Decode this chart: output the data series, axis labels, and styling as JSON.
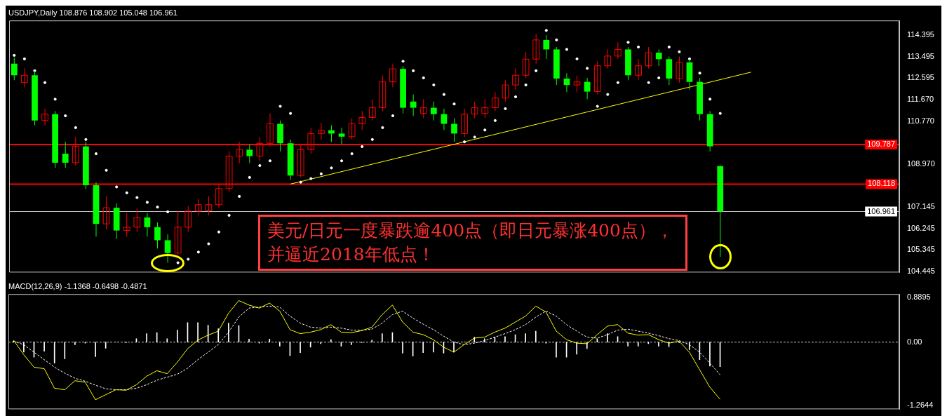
{
  "chart_data": [
    {
      "type": "candlestick",
      "title": "USDJPY,Daily 108.876 108.902 105.048 106.961",
      "categories": [
        null,
        null,
        null,
        null,
        null,
        null,
        null,
        null,
        null,
        null,
        null,
        null,
        null,
        null,
        null,
        null,
        null,
        null,
        null,
        null,
        null,
        null,
        null,
        null,
        null,
        null,
        null,
        null,
        null,
        null,
        null,
        null,
        null,
        null,
        null,
        null,
        null,
        null,
        null,
        null,
        null,
        null,
        null,
        null,
        null,
        null,
        null,
        null,
        null,
        null,
        null,
        null,
        null,
        null,
        null,
        null,
        null,
        null,
        null,
        null,
        null,
        null,
        null,
        null,
        null,
        null,
        null,
        null,
        null,
        null,
        null,
        null,
        null,
        null,
        null,
        null,
        null,
        null,
        null,
        null,
        null,
        null,
        null,
        null,
        null,
        null,
        null
      ],
      "ohlc": [
        [
          113.2,
          113.45,
          112.5,
          112.71
        ],
        [
          112.4,
          113.0,
          112.2,
          112.71
        ],
        [
          112.71,
          112.9,
          110.6,
          110.8
        ],
        [
          110.8,
          111.3,
          110.6,
          111.07
        ],
        [
          111.07,
          111.2,
          108.8,
          109.02
        ],
        [
          109.4,
          109.9,
          108.8,
          109.02
        ],
        [
          109.02,
          110.1,
          108.9,
          109.71
        ],
        [
          109.71,
          109.9,
          107.9,
          108.07
        ],
        [
          108.07,
          108.2,
          105.9,
          106.44
        ],
        [
          106.44,
          107.6,
          106.2,
          107.12
        ],
        [
          107.12,
          107.3,
          105.8,
          106.16
        ],
        [
          106.16,
          106.9,
          105.9,
          106.3
        ],
        [
          106.3,
          107.1,
          106.1,
          106.71
        ],
        [
          106.71,
          106.9,
          105.9,
          106.3
        ],
        [
          106.3,
          106.5,
          105.4,
          105.75
        ],
        [
          105.75,
          106.0,
          104.8,
          105.21
        ],
        [
          105.21,
          107.0,
          105.1,
          106.3
        ],
        [
          106.3,
          107.2,
          106.1,
          106.98
        ],
        [
          106.98,
          107.5,
          106.8,
          107.25
        ],
        [
          107.0,
          107.6,
          106.8,
          107.25
        ],
        [
          107.25,
          108.1,
          107.1,
          107.93
        ],
        [
          107.93,
          109.5,
          107.8,
          109.3
        ],
        [
          109.3,
          109.9,
          109.0,
          109.57
        ],
        [
          109.57,
          109.8,
          109.0,
          109.3
        ],
        [
          109.3,
          110.1,
          109.1,
          109.84
        ],
        [
          109.84,
          111.1,
          109.7,
          110.66
        ],
        [
          110.66,
          110.8,
          109.5,
          109.84
        ],
        [
          109.84,
          110.0,
          108.3,
          108.48
        ],
        [
          108.48,
          109.8,
          108.4,
          109.57
        ],
        [
          109.57,
          110.5,
          109.4,
          110.25
        ],
        [
          110.25,
          110.7,
          110.0,
          110.39
        ],
        [
          110.39,
          110.6,
          109.9,
          110.25
        ],
        [
          110.25,
          110.5,
          109.8,
          110.12
        ],
        [
          110.12,
          110.9,
          110.0,
          110.66
        ],
        [
          110.66,
          111.2,
          110.4,
          110.93
        ],
        [
          110.93,
          111.7,
          110.8,
          111.34
        ],
        [
          111.34,
          112.7,
          111.2,
          112.43
        ],
        [
          112.43,
          113.2,
          112.2,
          112.98
        ],
        [
          112.98,
          113.1,
          111.1,
          111.34
        ],
        [
          111.6,
          111.9,
          111.0,
          111.34
        ],
        [
          111.1,
          111.7,
          110.9,
          111.34
        ],
        [
          111.34,
          111.6,
          110.8,
          111.07
        ],
        [
          111.07,
          111.3,
          110.4,
          110.66
        ],
        [
          110.66,
          110.9,
          109.9,
          110.25
        ],
        [
          110.25,
          111.3,
          110.1,
          111.07
        ],
        [
          111.07,
          111.6,
          110.9,
          111.34
        ],
        [
          111.1,
          111.7,
          110.9,
          111.34
        ],
        [
          111.34,
          112.0,
          111.2,
          111.75
        ],
        [
          111.75,
          112.5,
          111.6,
          112.3
        ],
        [
          112.3,
          113.0,
          112.1,
          112.71
        ],
        [
          112.71,
          113.7,
          112.6,
          113.39
        ],
        [
          113.39,
          114.45,
          113.2,
          114.2
        ],
        [
          114.2,
          114.4,
          113.4,
          113.8
        ],
        [
          113.8,
          113.9,
          112.3,
          112.57
        ],
        [
          112.57,
          112.8,
          112.0,
          112.3
        ],
        [
          112.3,
          112.7,
          112.0,
          112.43
        ],
        [
          112.43,
          112.6,
          111.7,
          112.02
        ],
        [
          112.02,
          113.3,
          111.9,
          113.11
        ],
        [
          113.11,
          113.8,
          113.0,
          113.52
        ],
        [
          113.52,
          114.1,
          113.4,
          113.8
        ],
        [
          113.8,
          113.9,
          112.5,
          112.71
        ],
        [
          112.71,
          113.4,
          112.5,
          113.11
        ],
        [
          113.11,
          113.9,
          113.0,
          113.66
        ],
        [
          113.66,
          113.8,
          113.1,
          113.39
        ],
        [
          113.39,
          113.5,
          112.3,
          112.57
        ],
        [
          112.57,
          113.5,
          112.4,
          113.25
        ],
        [
          113.25,
          113.4,
          112.1,
          112.43
        ],
        [
          112.43,
          112.6,
          110.8,
          111.07
        ],
        [
          111.07,
          111.2,
          109.5,
          109.71
        ],
        [
          108.876,
          108.902,
          105.048,
          106.961
        ],
        null,
        null,
        null,
        null,
        null,
        null,
        null,
        null,
        null,
        null,
        null,
        null,
        null,
        null,
        null,
        null,
        null
      ],
      "colors": [
        "#00ff00",
        "#ff0000",
        "#00ff00",
        "#ff0000",
        "#00ff00",
        "#00ff00",
        "#ff0000",
        "#00ff00",
        "#00ff00",
        "#ff0000",
        "#00ff00",
        "#ff0000",
        "#ff0000",
        "#00ff00",
        "#00ff00",
        "#00ff00",
        "#ff0000",
        "#ff0000",
        "#ff0000",
        "#ff0000",
        "#ff0000",
        "#ff0000",
        "#ff0000",
        "#00ff00",
        "#ff0000",
        "#ff0000",
        "#00ff00",
        "#00ff00",
        "#ff0000",
        "#ff0000",
        "#ff0000",
        "#00ff00",
        "#00ff00",
        "#ff0000",
        "#ff0000",
        "#ff0000",
        "#ff0000",
        "#ff0000",
        "#00ff00",
        "#00ff00",
        "#ff0000",
        "#00ff00",
        "#00ff00",
        "#00ff00",
        "#ff0000",
        "#ff0000",
        "#ff0000",
        "#ff0000",
        "#ff0000",
        "#ff0000",
        "#ff0000",
        "#ff0000",
        "#00ff00",
        "#00ff00",
        "#00ff00",
        "#ff0000",
        "#00ff00",
        "#ff0000",
        "#ff0000",
        "#ff0000",
        "#00ff00",
        "#ff0000",
        "#ff0000",
        "#00ff00",
        "#00ff00",
        "#ff0000",
        "#00ff00",
        "#00ff00",
        "#00ff00",
        "#00ff00",
        null,
        null,
        null,
        null,
        null,
        null,
        null,
        null,
        null,
        null,
        null,
        null,
        null,
        null,
        null,
        null,
        null
      ],
      "series": [
        {
          "type": "scatter",
          "color": "#ffffff",
          "marker": "circle",
          "values": [
            113.55,
            113.4,
            112.9,
            112.4,
            111.7,
            111.0,
            110.5,
            110.0,
            109.4,
            108.7,
            108.0,
            107.75,
            107.55,
            107.35,
            107.15,
            106.95,
            104.8,
            104.95,
            105.25,
            105.6,
            106.1,
            106.8,
            107.6,
            108.4,
            108.9,
            109.1,
            111.4,
            111.1,
            108.2,
            108.35,
            108.55,
            108.8,
            109.1,
            109.4,
            109.7,
            110.0,
            110.5,
            111.0,
            113.3,
            112.9,
            112.6,
            112.3,
            111.9,
            111.5,
            109.9,
            110.1,
            110.4,
            110.8,
            111.3,
            111.8,
            112.3,
            112.9,
            114.6,
            114.2,
            113.8,
            113.4,
            113.0,
            111.4,
            111.9,
            112.4,
            114.1,
            113.9,
            112.4,
            112.6,
            113.9,
            113.7,
            113.4,
            112.8,
            111.7,
            111.1,
            null,
            null,
            null,
            null,
            null,
            null,
            null,
            null,
            null,
            null,
            null,
            null,
            null,
            null,
            null,
            null,
            null
          ]
        },
        {
          "type": "line",
          "color": "#ffff00",
          "values": [
            null,
            null,
            null,
            null,
            null,
            null,
            null,
            null,
            null,
            null,
            null,
            null,
            null,
            null,
            null,
            null,
            null,
            null,
            null,
            null,
            null,
            null,
            null,
            null,
            null,
            null,
            null,
            108.12,
            null,
            null,
            null,
            null,
            null,
            null,
            null,
            null,
            null,
            null,
            null,
            null,
            null,
            null,
            null,
            null,
            null,
            null,
            null,
            null,
            null,
            null,
            null,
            null,
            null,
            null,
            null,
            null,
            null,
            null,
            null,
            null,
            null,
            null,
            null,
            null,
            null,
            null,
            null,
            null,
            null,
            null,
            null,
            null,
            112.84,
            null,
            null,
            null,
            null,
            null,
            null,
            null,
            null,
            null,
            null,
            null,
            null,
            null,
            null
          ]
        }
      ],
      "ylim": [
        104.39,
        115.02
      ],
      "yticks": [
        114.395,
        113.495,
        112.595,
        {
          "value": 111.67,
          "label": "111.670"
        },
        {
          "value": 110.77,
          "label": "110.770"
        },
        {
          "value": 108.97,
          "label": "108.970"
        },
        107.145,
        106.245,
        105.345,
        104.445
      ],
      "ref_lines": [
        {
          "axis": "y",
          "value": 109.787,
          "label": "109.787",
          "color": "#ff0000"
        },
        {
          "axis": "y",
          "value": 108.118,
          "label": "108.118",
          "color": "#ff0000"
        },
        {
          "axis": "y",
          "value": 106.961,
          "label": "106.961",
          "color": "#c0c0c0"
        }
      ],
      "annotations": [
        "美元/日元一度暴跌逾400点（即日元暴涨400点），并逼近2018年低点！"
      ],
      "tick_labels": "y"
    },
    {
      "type": "bar",
      "title": "MACD(12,26,9) -1.1368 -0.6498 -0.4871",
      "categories": [
        null,
        null,
        null,
        null,
        null,
        null,
        null,
        null,
        null,
        null,
        null,
        null,
        null,
        null,
        null,
        null,
        null,
        null,
        null,
        null,
        null,
        null,
        null,
        null,
        null,
        null,
        null,
        null,
        null,
        null,
        null,
        null,
        null,
        null,
        null,
        null,
        null,
        null,
        null,
        null,
        null,
        null,
        null,
        null,
        null,
        null,
        null,
        null,
        null,
        null,
        null,
        null,
        null,
        null,
        null,
        null,
        null,
        null,
        null,
        null,
        null,
        null,
        null,
        null,
        null,
        null,
        null,
        null,
        null,
        null,
        null,
        null,
        null,
        null,
        null,
        null,
        null,
        null,
        null,
        null,
        null,
        null,
        null,
        null,
        null,
        null,
        null
      ],
      "series": [
        {
          "type": "bar",
          "color": "#ffffff",
          "values": [
            0.02,
            -0.2,
            -0.3,
            -0.18,
            -0.42,
            -0.33,
            -0.05,
            -0.02,
            -0.29,
            -0.12,
            0,
            -0.01,
            0.07,
            0.17,
            0.19,
            0.07,
            0.24,
            0.39,
            0.39,
            0.34,
            0.27,
            0.38,
            0.33,
            0.06,
            -0.02,
            0.06,
            -0.08,
            -0.27,
            -0.21,
            -0.1,
            -0.03,
            0.05,
            -0.08,
            -0.05,
            -0.01,
            0.04,
            0.17,
            0.19,
            -0.22,
            -0.28,
            -0.21,
            -0.2,
            -0.22,
            -0.2,
            0,
            0.1,
            0.07,
            0.1,
            0.11,
            0.15,
            0.17,
            0.22,
            -0.02,
            -0.3,
            -0.3,
            -0.24,
            -0.13,
            0.07,
            0.17,
            0.11,
            -0.08,
            -0.08,
            -0.03,
            -0.08,
            -0.09,
            -0.01,
            -0.15,
            -0.35,
            -0.48,
            -0.49,
            null,
            null,
            null,
            null,
            null,
            null,
            null,
            null,
            null,
            null,
            null,
            null,
            null,
            null,
            null,
            null,
            null
          ]
        },
        {
          "type": "line",
          "color": "#ffff00",
          "values": [
            0.04,
            -0.25,
            -0.5,
            -0.53,
            -0.92,
            -0.95,
            -0.77,
            -0.8,
            -1.15,
            -1.05,
            -0.95,
            -0.96,
            -0.85,
            -0.68,
            -0.57,
            -0.63,
            -0.4,
            -0.13,
            0.04,
            0.14,
            0.22,
            0.58,
            0.83,
            0.74,
            0.68,
            0.78,
            0.62,
            0.25,
            0.17,
            0.2,
            0.25,
            0.35,
            0.2,
            0.19,
            0.23,
            0.3,
            0.55,
            0.74,
            0.4,
            0.2,
            0.15,
            0.05,
            -0.1,
            -0.2,
            -0.05,
            0.08,
            0.1,
            0.2,
            0.28,
            0.4,
            0.52,
            0.72,
            0.6,
            0.22,
            0.05,
            -0.02,
            -0.03,
            0.15,
            0.32,
            0.35,
            0.18,
            0.14,
            0.15,
            0.05,
            -0.02,
            0.02,
            -0.2,
            -0.55,
            -0.9,
            -1.14,
            null,
            null,
            null,
            null,
            null,
            null,
            null,
            null,
            null,
            null,
            null,
            null,
            null,
            null,
            null,
            null,
            null
          ]
        },
        {
          "type": "line",
          "color": "#ffffff",
          "line_style": "dashed",
          "values": [
            0.02,
            -0.05,
            -0.2,
            -0.35,
            -0.5,
            -0.62,
            -0.72,
            -0.78,
            -0.86,
            -0.93,
            -0.95,
            -0.95,
            -0.92,
            -0.85,
            -0.76,
            -0.7,
            -0.64,
            -0.52,
            -0.35,
            -0.2,
            -0.05,
            0.2,
            0.5,
            0.68,
            0.7,
            0.72,
            0.7,
            0.52,
            0.38,
            0.3,
            0.28,
            0.3,
            0.28,
            0.24,
            0.24,
            0.26,
            0.38,
            0.55,
            0.62,
            0.48,
            0.36,
            0.25,
            0.12,
            0.0,
            -0.05,
            -0.02,
            0.03,
            0.1,
            0.17,
            0.25,
            0.35,
            0.5,
            0.62,
            0.52,
            0.35,
            0.22,
            0.1,
            0.08,
            0.15,
            0.24,
            0.26,
            0.22,
            0.18,
            0.13,
            0.07,
            0.03,
            -0.05,
            -0.2,
            -0.42,
            -0.65,
            null,
            null,
            null,
            null,
            null,
            null,
            null,
            null,
            null,
            null,
            null,
            null,
            null,
            null,
            null,
            null,
            null
          ]
        }
      ],
      "ylim": [
        -1.34,
        0.96
      ],
      "yticks": [
        0.8895,
        {
          "value": 0,
          "label": "0.00"
        },
        -1.2644
      ],
      "ref_lines": [
        {
          "axis": "y",
          "value": 0,
          "color": "#c0c0c0",
          "line_style": "dashed"
        }
      ],
      "tick_labels": "y"
    }
  ]
}
